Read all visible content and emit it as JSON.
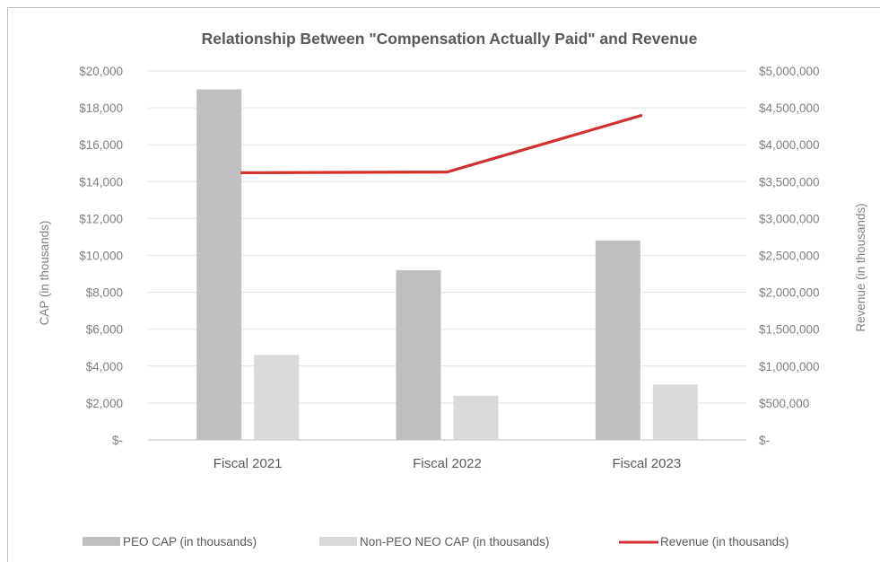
{
  "chart_data": {
    "type": "bar",
    "title": "Relationship Between \"Compensation Actually Paid\" and Revenue",
    "categories": [
      "Fiscal 2021",
      "Fiscal 2022",
      "Fiscal 2023"
    ],
    "series": [
      {
        "name": "PEO CAP (in thousands)",
        "type": "bar",
        "axis": "left",
        "color": "#bfbfbf",
        "values": [
          19000,
          9200,
          10800
        ]
      },
      {
        "name": "Non-PEO NEO CAP (in thousands)",
        "type": "bar",
        "axis": "left",
        "color": "#d9d9d9",
        "values": [
          4600,
          2400,
          3000
        ]
      },
      {
        "name": "Revenue (in thousands)",
        "type": "line",
        "axis": "right",
        "color": "#d32f2f",
        "values": [
          3620000,
          3630000,
          4400000
        ]
      }
    ],
    "ylabel": "CAP (in thousands)",
    "y2label": "Revenue (in thousands)",
    "ylim": [
      0,
      20000
    ],
    "y2lim": [
      0,
      5000000
    ],
    "yticks": [
      "$-",
      "$2,000",
      "$4,000",
      "$6,000",
      "$8,000",
      "$10,000",
      "$12,000",
      "$14,000",
      "$16,000",
      "$18,000",
      "$20,000"
    ],
    "y2ticks": [
      "$-",
      "$500,000",
      "$1,000,000",
      "$1,500,000",
      "$2,000,000",
      "$2,500,000",
      "$3,000,000",
      "$3,500,000",
      "$4,000,000",
      "$4,500,000",
      "$5,000,000"
    ],
    "grid": true,
    "legend": "bottom"
  }
}
